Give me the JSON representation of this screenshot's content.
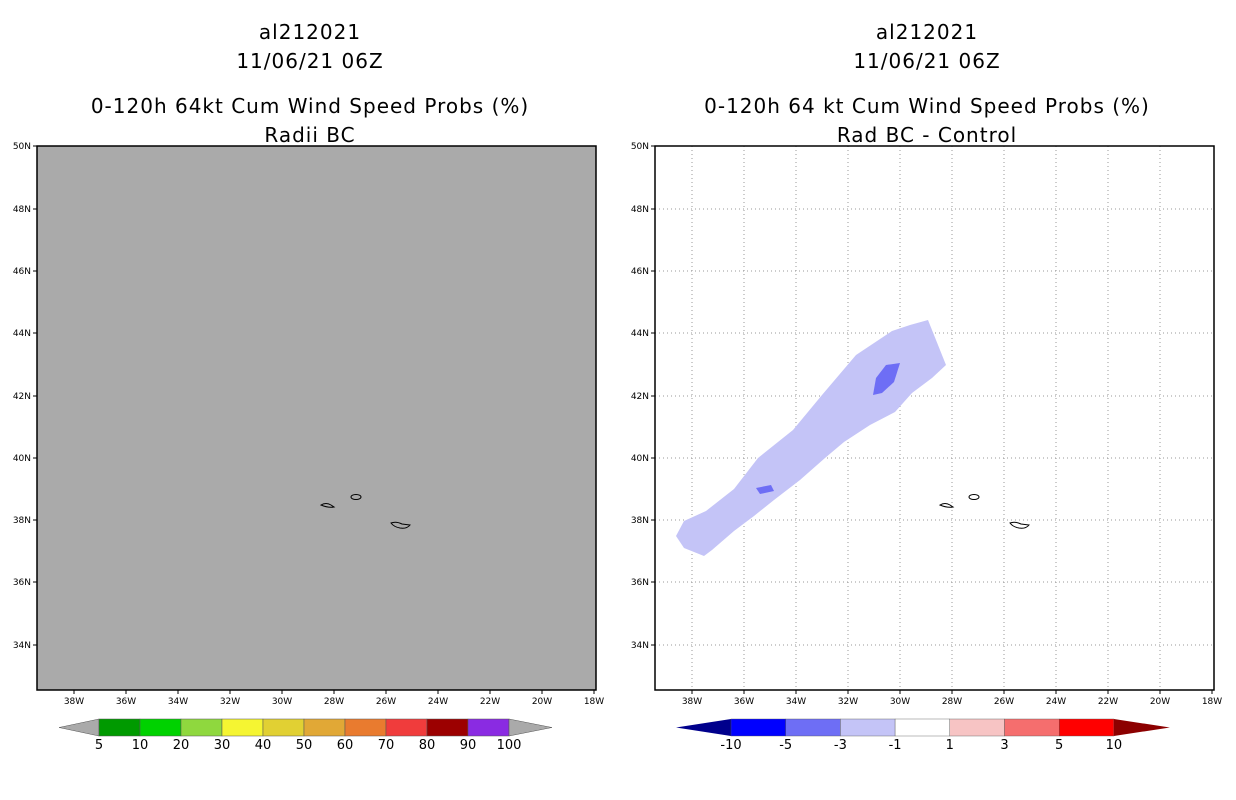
{
  "left_panel": {
    "storm_id": "al212021",
    "datetime": "11/06/21 06Z",
    "title": "0-120h 64kt Cum Wind Speed Probs (%)",
    "subtitle": "Radii BC",
    "colorbar": {
      "labels": [
        "5",
        "10",
        "20",
        "30",
        "40",
        "50",
        "60",
        "70",
        "80",
        "90",
        "100"
      ],
      "colors": [
        "#009a00",
        "#00d200",
        "#8fd83e",
        "#f5f532",
        "#e1d033",
        "#e1a836",
        "#e97b2f",
        "#f03c3c",
        "#9c0000",
        "#8a2be2"
      ]
    }
  },
  "right_panel": {
    "storm_id": "al212021",
    "datetime": "11/06/21 06Z",
    "title": "0-120h 64 kt Cum Wind Speed Probs (%)",
    "subtitle": "Rad BC - Control",
    "colorbar": {
      "labels": [
        "-10",
        "-5",
        "-3",
        "-1",
        "1",
        "3",
        "5",
        "10"
      ],
      "colors": [
        "#0000ff",
        "#6e6ef5",
        "#c4c4f7",
        "#ffffff",
        "#f7c4c4",
        "#f56e6e",
        "#ff0000"
      ],
      "end_low": "#00008c",
      "end_high": "#8c0000"
    }
  },
  "axes": {
    "lat_labels": [
      "50N",
      "48N",
      "46N",
      "44N",
      "42N",
      "40N",
      "38N",
      "36N",
      "34N"
    ],
    "lon_labels": [
      "38W",
      "36W",
      "34W",
      "32W",
      "30W",
      "28W",
      "26W",
      "24W",
      "22W",
      "20W",
      "18W"
    ]
  },
  "colors": {
    "map_background_left": "#aaaaaa",
    "map_background_right": "#ffffff",
    "light_blue": "#c4c4f7",
    "mid_blue": "#6e6ef5"
  }
}
